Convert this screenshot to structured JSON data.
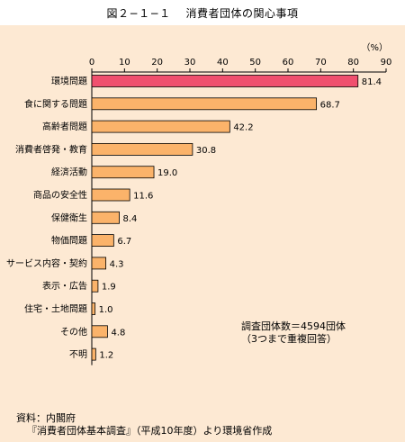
{
  "page": {
    "title": "図２−１−１　 消費者団体の関心事項",
    "colors": {
      "background": "#fde9d3",
      "highlight_bar": "#f0506e",
      "bar": "#fbb36a",
      "bar_stroke": "#000000"
    }
  },
  "notes": {
    "count_line1": "調査団体数＝4594団体",
    "count_line2": "（3つまで重複回答）",
    "source_line1": "資料：内閣府",
    "source_line2": "『消費者団体基本調査』（平成10年度）より環境省作成"
  },
  "chart_data": {
    "type": "bar",
    "orientation": "horizontal",
    "unit_label": "（%）",
    "xlim": [
      0,
      90
    ],
    "xticks": [
      0,
      10,
      20,
      30,
      40,
      50,
      60,
      70,
      80,
      90
    ],
    "categories": [
      "環境問題",
      "食に関する問題",
      "高齢者問題",
      "消費者啓発・教育",
      "経済活動",
      "商品の安全性",
      "保健衛生",
      "物価問題",
      "サービス内容・契約",
      "表示・広告",
      "住宅・土地問題",
      "その他",
      "不明"
    ],
    "values": [
      81.4,
      68.7,
      42.2,
      30.8,
      19.0,
      11.6,
      8.4,
      6.7,
      4.3,
      1.9,
      1.0,
      4.8,
      1.2
    ],
    "value_labels": [
      "81.4",
      "68.7",
      "42.2",
      "30.8",
      "19.0",
      "11.6",
      "8.4",
      "6.7",
      "4.3",
      "1.9",
      "1.0",
      "4.8",
      "1.2"
    ],
    "highlight_index": 0
  }
}
